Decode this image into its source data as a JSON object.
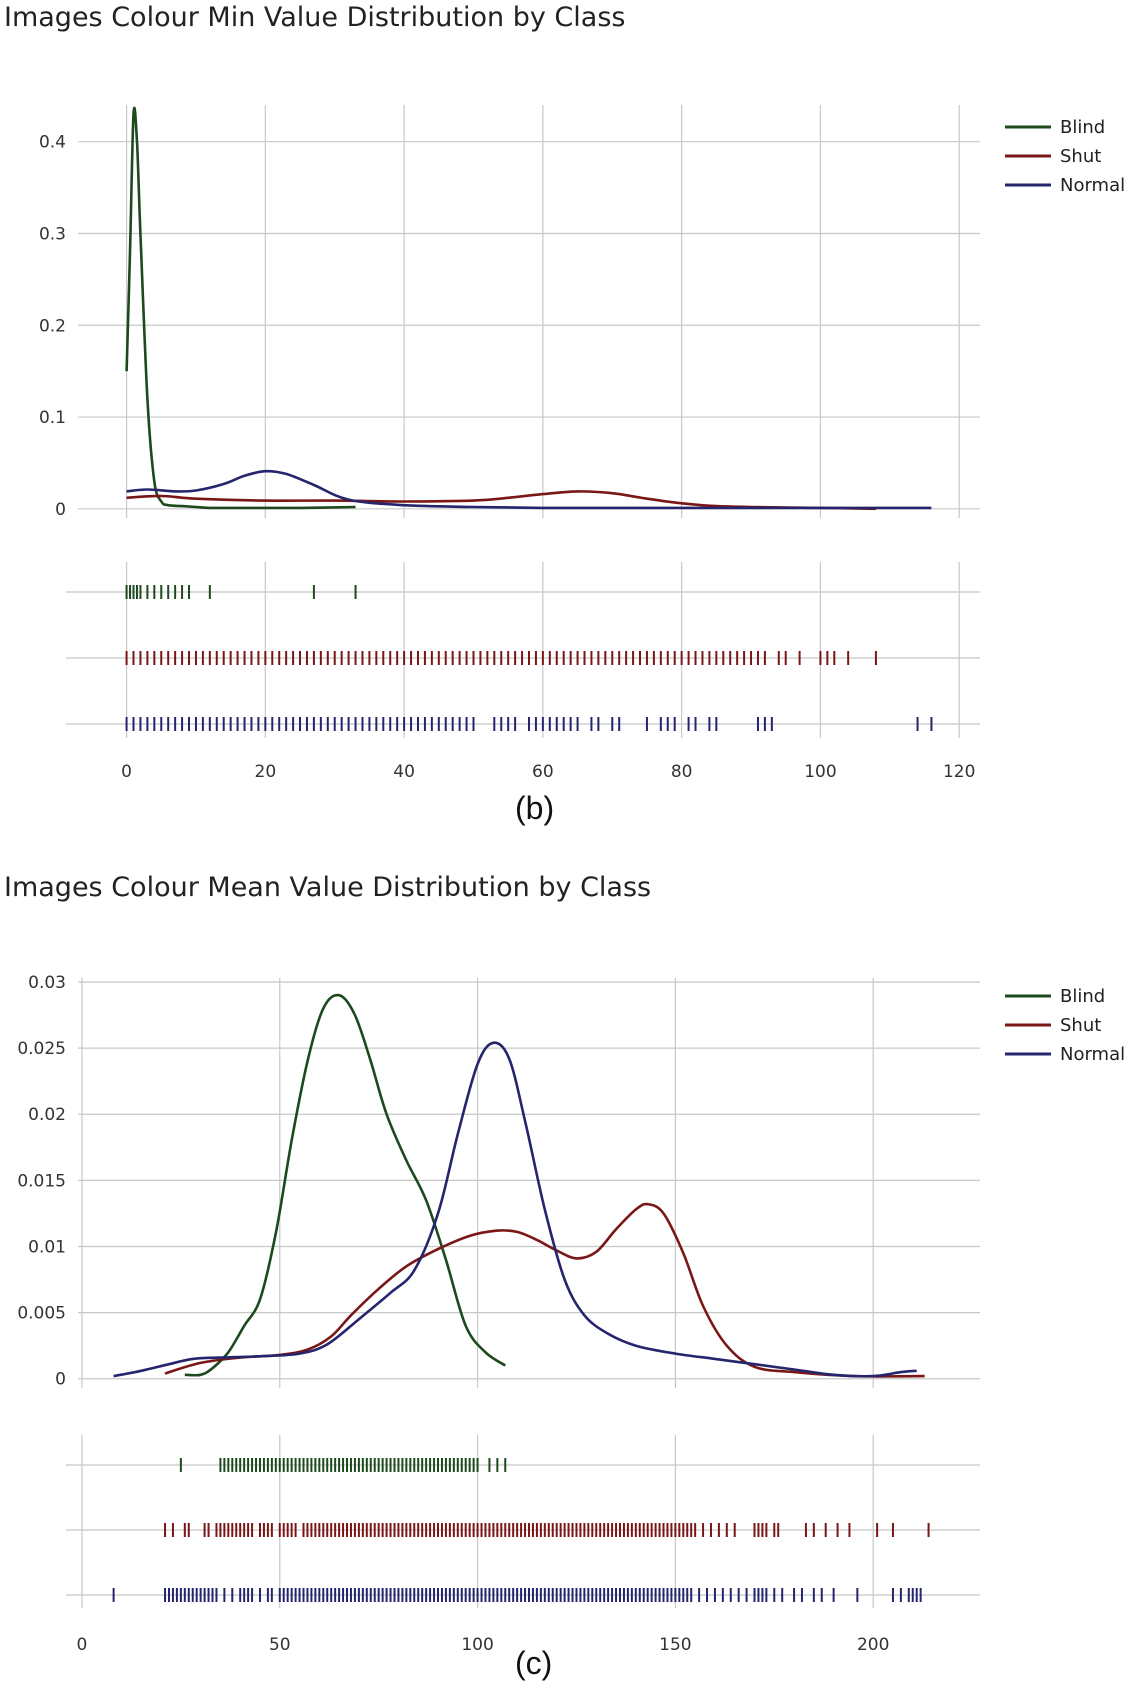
{
  "figures": [
    {
      "title": "Images Colour Min Value Distribution by Class",
      "panel": "(b)"
    },
    {
      "title": "Images Colour Mean Value Distribution by Class",
      "panel": "(c)"
    }
  ],
  "colors": {
    "Blind": "#1d4a1d",
    "Shut": "#7a1616",
    "Normal": "#25256e",
    "grid": "#c8c8c8"
  },
  "chart_data": [
    {
      "type": "line",
      "title": "Images Colour Min Value Distribution by Class",
      "xlabel": "",
      "ylabel": "",
      "xlim": [
        -7,
        123
      ],
      "ylim": [
        -0.01,
        0.44
      ],
      "xticks": [
        0,
        20,
        40,
        60,
        80,
        100,
        120
      ],
      "xtick_labels": [
        "0",
        "20",
        "40",
        "60",
        "80",
        "100",
        "120"
      ],
      "yticks": [
        0,
        0.1,
        0.2,
        0.3,
        0.4
      ],
      "ytick_labels": [
        "0",
        "0.1",
        "0.2",
        "0.3",
        "0.4"
      ],
      "legend": "top-right",
      "series": [
        {
          "name": "Blind",
          "x": [
            0,
            0.5,
            1,
            1.5,
            2,
            3,
            4,
            5,
            6,
            8,
            10,
            12,
            15,
            20,
            25,
            33
          ],
          "y": [
            0.15,
            0.28,
            0.43,
            0.4,
            0.3,
            0.12,
            0.03,
            0.008,
            0.004,
            0.003,
            0.002,
            0.001,
            0.001,
            0.001,
            0.001,
            0.002
          ]
        },
        {
          "name": "Shut",
          "x": [
            0,
            5,
            10,
            20,
            30,
            40,
            50,
            55,
            60,
            65,
            70,
            75,
            80,
            85,
            90,
            100,
            108
          ],
          "y": [
            0.012,
            0.014,
            0.011,
            0.009,
            0.009,
            0.008,
            0.009,
            0.012,
            0.016,
            0.019,
            0.017,
            0.011,
            0.006,
            0.003,
            0.002,
            0.001,
            0
          ]
        },
        {
          "name": "Normal",
          "x": [
            0,
            3,
            7,
            10,
            14,
            17,
            20,
            23,
            27,
            32,
            40,
            50,
            60,
            70,
            80,
            90,
            100,
            110,
            116
          ],
          "y": [
            0.019,
            0.021,
            0.019,
            0.02,
            0.027,
            0.036,
            0.041,
            0.038,
            0.026,
            0.01,
            0.004,
            0.002,
            0.001,
            0.001,
            0.001,
            0.001,
            0.001,
            0.001,
            0.001
          ]
        }
      ],
      "rug": {
        "Blind": [
          0,
          0.5,
          1,
          1.5,
          2,
          3,
          4,
          5,
          6,
          7,
          8,
          9,
          12,
          27,
          33
        ],
        "Shut": [
          0,
          1,
          2,
          3,
          4,
          5,
          6,
          7,
          8,
          9,
          10,
          11,
          12,
          13,
          14,
          15,
          16,
          17,
          18,
          19,
          20,
          21,
          22,
          23,
          24,
          25,
          26,
          27,
          28,
          29,
          30,
          31,
          32,
          33,
          34,
          35,
          36,
          37,
          38,
          39,
          40,
          41,
          42,
          43,
          44,
          45,
          46,
          47,
          48,
          49,
          50,
          51,
          52,
          53,
          54,
          55,
          56,
          57,
          58,
          59,
          60,
          61,
          62,
          63,
          64,
          65,
          66,
          67,
          68,
          69,
          70,
          71,
          72,
          73,
          74,
          75,
          76,
          77,
          78,
          79,
          80,
          81,
          82,
          83,
          84,
          85,
          86,
          87,
          88,
          89,
          90,
          91,
          92,
          94,
          95,
          97,
          100,
          101,
          102,
          104,
          108
        ],
        "Normal": [
          0,
          1,
          2,
          3,
          4,
          5,
          6,
          7,
          8,
          9,
          10,
          11,
          12,
          13,
          14,
          15,
          16,
          17,
          18,
          19,
          20,
          21,
          22,
          23,
          24,
          25,
          26,
          27,
          28,
          29,
          30,
          31,
          32,
          33,
          34,
          35,
          36,
          37,
          38,
          39,
          40,
          41,
          42,
          43,
          44,
          45,
          46,
          47,
          48,
          49,
          50,
          53,
          54,
          55,
          56,
          58,
          59,
          60,
          61,
          62,
          63,
          64,
          65,
          67,
          68,
          70,
          71,
          75,
          77,
          78,
          79,
          81,
          82,
          84,
          85,
          91,
          92,
          93,
          114,
          116
        ]
      }
    },
    {
      "type": "line",
      "title": "Images Colour Mean Value Distribution by Class",
      "xlabel": "",
      "ylabel": "",
      "xlim": [
        -1,
        227
      ],
      "ylim": [
        -0.0007,
        0.0303
      ],
      "xticks": [
        0,
        50,
        100,
        150,
        200
      ],
      "xtick_labels": [
        "0",
        "50",
        "100",
        "150",
        "200"
      ],
      "yticks": [
        0,
        0.005,
        0.01,
        0.015,
        0.02,
        0.025,
        0.03
      ],
      "ytick_labels": [
        "0",
        "0.005",
        "0.01",
        "0.015",
        "0.02",
        "0.025",
        "0.03"
      ],
      "legend": "top-right",
      "series": [
        {
          "name": "Blind",
          "x": [
            26,
            30,
            33,
            37,
            41,
            45,
            49,
            53,
            57,
            61,
            65,
            69,
            73,
            77,
            82,
            87,
            92,
            97,
            102,
            107
          ],
          "y": [
            0.0003,
            0.0003,
            0.0008,
            0.002,
            0.004,
            0.006,
            0.011,
            0.018,
            0.024,
            0.028,
            0.029,
            0.0275,
            0.024,
            0.02,
            0.0165,
            0.0135,
            0.009,
            0.004,
            0.002,
            0.001
          ]
        },
        {
          "name": "Shut",
          "x": [
            21,
            30,
            40,
            50,
            57,
            63,
            68,
            75,
            82,
            90,
            98,
            105,
            110,
            115,
            120,
            125,
            130,
            135,
            140,
            143,
            147,
            152,
            157,
            163,
            170,
            180,
            195,
            213
          ],
          "y": [
            0.0004,
            0.0012,
            0.0016,
            0.0018,
            0.0022,
            0.0032,
            0.0048,
            0.0068,
            0.0085,
            0.0098,
            0.0108,
            0.0112,
            0.0111,
            0.0105,
            0.0097,
            0.0091,
            0.0096,
            0.0113,
            0.0128,
            0.0132,
            0.0125,
            0.0095,
            0.0055,
            0.0025,
            0.0009,
            0.0005,
            0.0002,
            0.0002
          ]
        },
        {
          "name": "Normal",
          "x": [
            8,
            15,
            22,
            28,
            35,
            45,
            55,
            62,
            70,
            78,
            84,
            90,
            95,
            100,
            104,
            108,
            112,
            117,
            122,
            127,
            133,
            140,
            150,
            160,
            170,
            180,
            190,
            200,
            207,
            211
          ],
          "y": [
            0.0002,
            0.0006,
            0.0011,
            0.0015,
            0.0016,
            0.0017,
            0.0019,
            0.0026,
            0.0045,
            0.0065,
            0.0082,
            0.0125,
            0.0185,
            0.0238,
            0.0254,
            0.0242,
            0.0195,
            0.0128,
            0.0075,
            0.0048,
            0.0034,
            0.0025,
            0.0019,
            0.0015,
            0.0011,
            0.0007,
            0.0003,
            0.0002,
            0.0005,
            0.0006
          ]
        }
      ],
      "rug": {
        "Blind": [
          25,
          35,
          36,
          37,
          38,
          39,
          40,
          41,
          42,
          43,
          44,
          45,
          46,
          47,
          48,
          49,
          50,
          51,
          52,
          53,
          54,
          55,
          56,
          57,
          58,
          59,
          60,
          61,
          62,
          63,
          64,
          65,
          66,
          67,
          68,
          69,
          70,
          71,
          72,
          73,
          74,
          75,
          76,
          77,
          78,
          79,
          80,
          81,
          82,
          83,
          84,
          85,
          86,
          87,
          88,
          89,
          90,
          91,
          92,
          93,
          94,
          95,
          96,
          97,
          98,
          99,
          100,
          103,
          105,
          107
        ],
        "Shut": [
          21,
          23,
          26,
          27,
          31,
          32,
          34,
          35,
          36,
          37,
          38,
          39,
          40,
          41,
          42,
          43,
          45,
          46,
          47,
          48,
          50,
          51,
          52,
          53,
          54,
          56,
          57,
          58,
          59,
          60,
          61,
          62,
          63,
          64,
          65,
          66,
          67,
          68,
          69,
          70,
          71,
          72,
          73,
          74,
          75,
          76,
          77,
          78,
          79,
          80,
          81,
          82,
          83,
          84,
          85,
          86,
          87,
          88,
          89,
          90,
          91,
          92,
          93,
          94,
          95,
          96,
          97,
          98,
          99,
          100,
          101,
          102,
          103,
          104,
          105,
          106,
          107,
          108,
          109,
          110,
          111,
          112,
          113,
          114,
          115,
          116,
          117,
          118,
          119,
          120,
          121,
          122,
          123,
          124,
          125,
          126,
          127,
          128,
          129,
          130,
          131,
          132,
          133,
          134,
          135,
          136,
          137,
          138,
          139,
          140,
          141,
          142,
          143,
          144,
          145,
          146,
          147,
          148,
          149,
          150,
          151,
          152,
          153,
          154,
          155,
          157,
          159,
          161,
          163,
          165,
          170,
          171,
          172,
          173,
          175,
          176,
          183,
          185,
          188,
          191,
          194,
          201,
          205,
          214
        ],
        "Normal": [
          8,
          21,
          22,
          23,
          24,
          25,
          26,
          27,
          28,
          29,
          30,
          31,
          32,
          33,
          34,
          36,
          38,
          40,
          41,
          42,
          43,
          45,
          47,
          48,
          50,
          51,
          52,
          53,
          54,
          55,
          56,
          57,
          58,
          59,
          60,
          61,
          62,
          63,
          64,
          65,
          66,
          67,
          68,
          69,
          70,
          71,
          72,
          73,
          74,
          75,
          76,
          77,
          78,
          79,
          80,
          81,
          82,
          83,
          84,
          85,
          86,
          87,
          88,
          89,
          90,
          91,
          92,
          93,
          94,
          95,
          96,
          97,
          98,
          99,
          100,
          101,
          102,
          103,
          104,
          105,
          106,
          107,
          108,
          109,
          110,
          111,
          112,
          113,
          114,
          115,
          116,
          117,
          118,
          119,
          120,
          121,
          122,
          123,
          124,
          125,
          126,
          127,
          128,
          129,
          130,
          131,
          132,
          133,
          134,
          135,
          136,
          137,
          138,
          139,
          140,
          141,
          142,
          143,
          144,
          145,
          146,
          147,
          148,
          149,
          150,
          151,
          152,
          153,
          154,
          156,
          158,
          160,
          162,
          164,
          166,
          168,
          170,
          171,
          172,
          173,
          175,
          177,
          180,
          182,
          185,
          187,
          190,
          196,
          205,
          207,
          209,
          210,
          211,
          212
        ]
      }
    }
  ]
}
